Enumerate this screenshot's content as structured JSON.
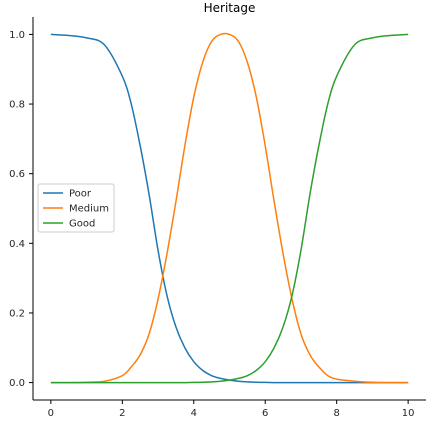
{
  "chart_data": {
    "type": "line",
    "title": "Heritage",
    "xlabel": "",
    "ylabel": "",
    "xlim": [
      -0.5,
      10.5
    ],
    "ylim": [
      -0.05,
      1.05
    ],
    "x_ticks": [
      0,
      2,
      4,
      6,
      8,
      10
    ],
    "x_tick_labels": [
      "0",
      "2",
      "4",
      "6",
      "8",
      "10"
    ],
    "y_ticks": [
      0.0,
      0.2,
      0.4,
      0.6,
      0.8,
      1.0
    ],
    "y_tick_labels": [
      "0.0",
      "0.2",
      "0.4",
      "0.6",
      "0.8",
      "1.0"
    ],
    "grid": false,
    "legend_position": "center-left",
    "x": [
      0,
      0.5,
      1,
      1.5,
      2,
      2.25,
      2.5,
      2.75,
      3,
      3.25,
      3.5,
      3.75,
      4,
      4.25,
      4.5,
      4.75,
      5,
      5.25,
      5.5,
      5.75,
      6,
      6.25,
      6.5,
      6.75,
      7,
      7.25,
      7.5,
      7.75,
      8,
      8.5,
      9,
      9.5,
      10
    ],
    "series": [
      {
        "name": "Poor",
        "color": "#1f77b4",
        "values": [
          1.0,
          0.997,
          0.99,
          0.97,
          0.88,
          0.8,
          0.68,
          0.54,
          0.38,
          0.25,
          0.16,
          0.1,
          0.06,
          0.035,
          0.02,
          0.012,
          0.007,
          0.004,
          0.002,
          0.001,
          0.0005,
          0.0,
          0.0,
          0.0,
          0.0,
          0.0,
          0.0,
          0.0,
          0.0,
          0.0,
          0.0,
          0.0,
          0.0
        ]
      },
      {
        "name": "Medium",
        "color": "#ff7f0e",
        "values": [
          0.0,
          0.0,
          0.001,
          0.004,
          0.02,
          0.045,
          0.08,
          0.14,
          0.24,
          0.37,
          0.52,
          0.68,
          0.82,
          0.92,
          0.98,
          1.0,
          1.0,
          0.98,
          0.92,
          0.82,
          0.68,
          0.52,
          0.37,
          0.24,
          0.14,
          0.08,
          0.045,
          0.02,
          0.01,
          0.004,
          0.001,
          0.0,
          0.0
        ]
      },
      {
        "name": "Good",
        "color": "#2ca02c",
        "values": [
          0.0,
          0.0,
          0.0,
          0.0,
          0.0,
          0.0,
          0.0,
          0.0,
          0.0,
          0.0,
          0.0,
          0.0,
          0.0005,
          0.001,
          0.002,
          0.004,
          0.007,
          0.012,
          0.02,
          0.035,
          0.06,
          0.1,
          0.16,
          0.25,
          0.38,
          0.54,
          0.68,
          0.8,
          0.88,
          0.97,
          0.99,
          0.997,
          1.0
        ]
      }
    ]
  }
}
